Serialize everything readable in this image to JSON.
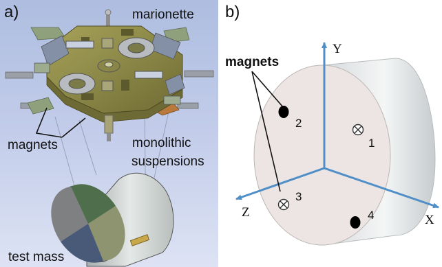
{
  "panel_a": {
    "letter": "a)",
    "labels": {
      "marionette": "marionette",
      "magnets": "magnets",
      "suspensions_line1": "monolithic",
      "suspensions_line2": "suspensions",
      "test_mass": "test mass"
    }
  },
  "panel_b": {
    "letter": "b)",
    "magnets_label": "magnets",
    "axes": {
      "y": "Y",
      "x": "X",
      "z": "Z"
    },
    "magnet_numbers": [
      "1",
      "2",
      "3",
      "4"
    ],
    "axis_color": "#4f8ec6"
  }
}
